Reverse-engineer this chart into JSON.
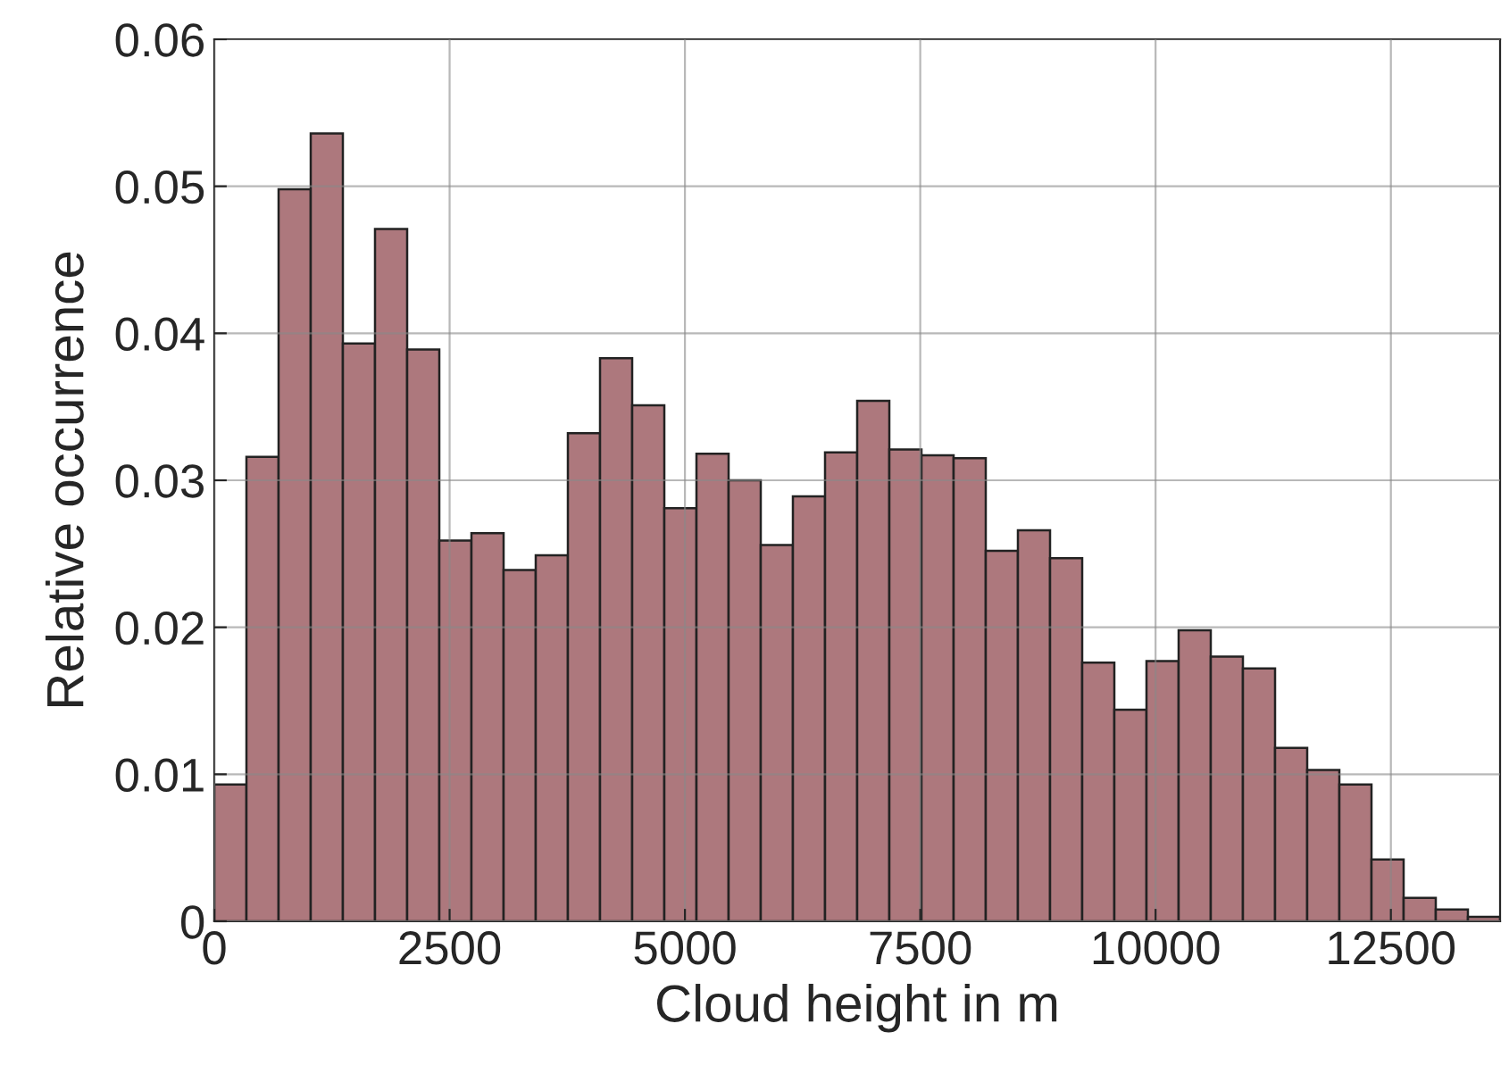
{
  "chart_data": {
    "type": "histogram",
    "xlabel": "Cloud height in m",
    "ylabel": "Relative occurrence",
    "bins": [
      0,
      341.5,
      683,
      1024.5,
      1366,
      1707.5,
      2049,
      2390.5,
      2732,
      3073.5,
      3415,
      3756.5,
      4098,
      4439.5,
      4781,
      5122.5,
      5464,
      5805.5,
      6147,
      6488.5,
      6830,
      7171.5,
      7513,
      7854.5,
      8196,
      8537.5,
      8879,
      9220.5,
      9562,
      9903.5,
      10245,
      10586.5,
      10928,
      11269.5,
      11611,
      11952.5,
      12294,
      12635.5,
      12977,
      13318.5,
      13660
    ],
    "values": [
      0.0093,
      0.0316,
      0.0498,
      0.0536,
      0.0393,
      0.0471,
      0.0389,
      0.0259,
      0.0264,
      0.0239,
      0.0249,
      0.0332,
      0.0383,
      0.0351,
      0.0281,
      0.0318,
      0.03,
      0.0256,
      0.0289,
      0.0319,
      0.0354,
      0.0321,
      0.0317,
      0.0315,
      0.0252,
      0.0266,
      0.0247,
      0.0176,
      0.0144,
      0.0177,
      0.0198,
      0.018,
      0.0172,
      0.0118,
      0.0103,
      0.0093,
      0.0042,
      0.0016,
      0.0008,
      0.0003
    ],
    "color": "#ad787d",
    "xlim": [
      0,
      13660
    ],
    "xticks": [
      0,
      2500,
      5000,
      7500,
      10000,
      12500
    ],
    "ylim": [
      0,
      0.06
    ],
    "yticks": [
      {
        "value": 0,
        "label": "0"
      },
      0.01,
      0.02,
      0.03,
      0.04,
      0.05,
      0.06
    ],
    "grid": true
  }
}
